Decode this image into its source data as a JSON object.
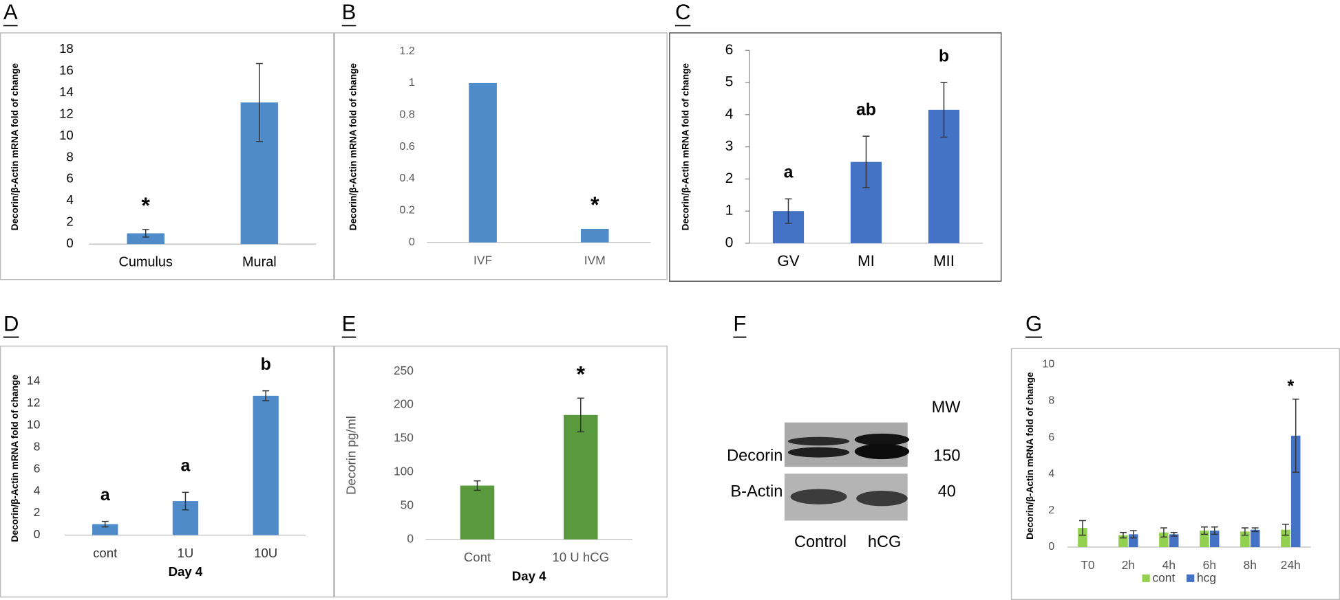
{
  "chart_data": [
    {
      "type": "bar",
      "panel": "A",
      "ylabel": "Decorin/β-Actin mRNA fold of change",
      "categories": [
        "Cumulus",
        "Mural"
      ],
      "values": [
        1,
        13.1
      ],
      "errors": [
        0.35,
        3.6
      ],
      "annotations": [
        "*",
        null
      ],
      "color": "#4f8bc9",
      "ylim": [
        0,
        18
      ],
      "yticks": [
        0,
        2,
        4,
        6,
        8,
        10,
        12,
        14,
        16,
        18
      ]
    },
    {
      "type": "bar",
      "panel": "B",
      "ylabel": "Decorin/β-Actin mRNA fold of change",
      "categories": [
        "IVF",
        "IVM"
      ],
      "values": [
        1,
        0.085
      ],
      "annotations": [
        null,
        "*"
      ],
      "color": "#4f8bc9",
      "ylim": [
        0,
        1.2
      ],
      "yticks": [
        0,
        0.2,
        0.4,
        0.6,
        0.8,
        1,
        1.2
      ]
    },
    {
      "type": "bar",
      "panel": "C",
      "ylabel": "Decorin/β-Actin mRNA fold of change",
      "categories": [
        "GV",
        "MI",
        "MII"
      ],
      "values": [
        1,
        2.53,
        4.15
      ],
      "errors": [
        0.38,
        0.8,
        0.85
      ],
      "annotations": [
        "a",
        "ab",
        "b"
      ],
      "color": "#4472c4",
      "ylim": [
        0,
        6
      ],
      "yticks": [
        0,
        1,
        2,
        3,
        4,
        5,
        6
      ]
    },
    {
      "type": "bar",
      "panel": "D",
      "ylabel": "Decorin/β-Actin mRNA fold of change",
      "xlabel": "Day 4",
      "categories": [
        "cont",
        "1U",
        "10U"
      ],
      "values": [
        1,
        3.1,
        12.7
      ],
      "errors": [
        0.25,
        0.8,
        0.45
      ],
      "annotations": [
        "a",
        "a",
        "b"
      ],
      "color": "#4f8bc9",
      "ylim": [
        0,
        14
      ],
      "yticks": [
        0,
        2,
        4,
        6,
        8,
        10,
        12,
        14
      ]
    },
    {
      "type": "bar",
      "panel": "E",
      "ylabel": "Decorin pg/ml",
      "xlabel": "Day 4",
      "categories": [
        "Cont",
        "10 U hCG"
      ],
      "values": [
        80,
        185
      ],
      "errors": [
        7,
        25
      ],
      "annotations": [
        null,
        "*"
      ],
      "color": "#5a9a3f",
      "ylim": [
        0,
        250
      ],
      "yticks": [
        0,
        50,
        100,
        150,
        200,
        250
      ]
    },
    {
      "type": "blot",
      "panel": "F",
      "header": "MW",
      "rows": [
        {
          "label": "Decorin",
          "mw": 150
        },
        {
          "label": "B-Actin",
          "mw": 40
        }
      ],
      "lanes": [
        "Control",
        "hCG"
      ]
    },
    {
      "type": "grouped-bar",
      "panel": "G",
      "ylabel": "Decorin/β-Actin mRNA fold of change",
      "categories": [
        "T0",
        "2h",
        "4h",
        "6h",
        "8h",
        "24h"
      ],
      "series": [
        {
          "name": "cont",
          "color": "#92d050",
          "values": [
            1.05,
            0.65,
            0.8,
            0.9,
            0.85,
            0.95
          ],
          "errors": [
            0.4,
            0.15,
            0.25,
            0.2,
            0.2,
            0.3
          ]
        },
        {
          "name": "hcg",
          "color": "#4472c4",
          "values": [
            null,
            0.7,
            0.7,
            0.9,
            0.95,
            6.1
          ],
          "errors": [
            null,
            0.2,
            0.1,
            0.2,
            0.1,
            2.0
          ]
        }
      ],
      "annotations": [
        null,
        null,
        null,
        null,
        null,
        "*"
      ],
      "ylim": [
        0,
        10
      ],
      "yticks": [
        0,
        2,
        4,
        6,
        8,
        10
      ],
      "legend": "bottom"
    }
  ]
}
